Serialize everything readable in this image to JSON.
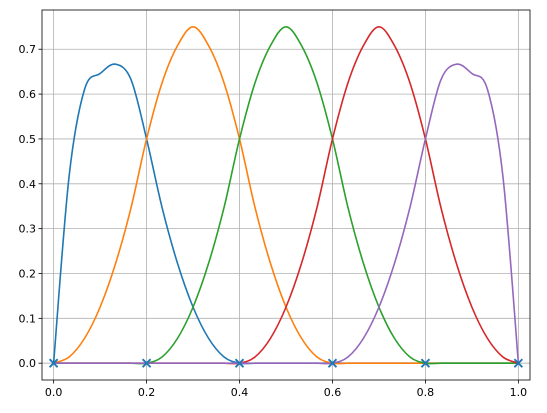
{
  "chart_data": {
    "type": "line",
    "title": "",
    "xlabel": "",
    "ylabel": "",
    "xlim": [
      -0.025,
      1.025
    ],
    "ylim": [
      -0.0375,
      0.7875
    ],
    "grid": true,
    "legend": "none",
    "x_ticks": [
      0.0,
      0.2,
      0.4,
      0.6,
      0.8,
      1.0
    ],
    "x_tick_labels": [
      "0.0",
      "0.2",
      "0.4",
      "0.6",
      "0.8",
      "1.0"
    ],
    "y_ticks": [
      0.0,
      0.1,
      0.2,
      0.3,
      0.4,
      0.5,
      0.6,
      0.7
    ],
    "y_tick_labels": [
      "0.0",
      "0.1",
      "0.2",
      "0.3",
      "0.4",
      "0.5",
      "0.6",
      "0.7"
    ],
    "x": [
      0.0,
      0.0333,
      0.0667,
      0.1,
      0.1333,
      0.1667,
      0.2,
      0.2333,
      0.2667,
      0.3,
      0.3333,
      0.3667,
      0.4,
      0.4333,
      0.4667,
      0.5,
      0.5333,
      0.5667,
      0.6,
      0.6333,
      0.6667,
      0.7,
      0.7333,
      0.7667,
      0.8,
      0.8333,
      0.8667,
      0.9,
      0.9333,
      0.9667,
      1.0
    ],
    "series": [
      {
        "color": "#1f77b4",
        "values": [
          0.0,
          0.4167,
          0.6111,
          0.6458,
          0.6667,
          0.6319,
          0.5,
          0.3472,
          0.2222,
          0.125,
          0.0556,
          0.0139,
          0.0,
          0.0,
          0.0,
          0.0,
          0.0,
          0.0,
          0.0,
          0.0,
          0.0,
          0.0,
          0.0,
          0.0,
          0.0,
          0.0,
          0.0,
          0.0,
          0.0,
          0.0,
          0.0
        ]
      },
      {
        "color": "#ff7f0e",
        "values": [
          0.0,
          0.0139,
          0.0556,
          0.125,
          0.2222,
          0.3472,
          0.5,
          0.625,
          0.7083,
          0.75,
          0.7083,
          0.625,
          0.5,
          0.3472,
          0.2222,
          0.125,
          0.0556,
          0.0139,
          0.0,
          0.0,
          0.0,
          0.0,
          0.0,
          0.0,
          0.0,
          0.0,
          0.0,
          0.0,
          0.0,
          0.0,
          0.0
        ]
      },
      {
        "color": "#2ca02c",
        "values": [
          0.0,
          0.0,
          0.0,
          0.0,
          0.0,
          0.0,
          0.0,
          0.0139,
          0.0556,
          0.125,
          0.2222,
          0.3472,
          0.5,
          0.625,
          0.7083,
          0.75,
          0.7083,
          0.625,
          0.5,
          0.3472,
          0.2222,
          0.125,
          0.0556,
          0.0139,
          0.0,
          0.0,
          0.0,
          0.0,
          0.0,
          0.0,
          0.0
        ]
      },
      {
        "color": "#d62728",
        "values": [
          0.0,
          0.0,
          0.0,
          0.0,
          0.0,
          0.0,
          0.0,
          0.0,
          0.0,
          0.0,
          0.0,
          0.0,
          0.0,
          0.0139,
          0.0556,
          0.125,
          0.2222,
          0.3472,
          0.5,
          0.625,
          0.7083,
          0.75,
          0.7083,
          0.625,
          0.5,
          0.3472,
          0.2222,
          0.125,
          0.0556,
          0.0139,
          0.0
        ]
      },
      {
        "color": "#9467bd",
        "values": [
          0.0,
          0.0,
          0.0,
          0.0,
          0.0,
          0.0,
          0.0,
          0.0,
          0.0,
          0.0,
          0.0,
          0.0,
          0.0,
          0.0,
          0.0,
          0.0,
          0.0,
          0.0,
          0.0,
          0.0139,
          0.0556,
          0.125,
          0.2222,
          0.3472,
          0.5,
          0.6319,
          0.6667,
          0.6458,
          0.6111,
          0.4167,
          0.0
        ]
      }
    ],
    "knots": {
      "x": [
        0.0,
        0.2,
        0.4,
        0.6,
        0.8,
        1.0
      ],
      "y": [
        0.0,
        0.0,
        0.0,
        0.0,
        0.0,
        0.0
      ],
      "marker": "x",
      "color": "#1f77b4"
    }
  }
}
